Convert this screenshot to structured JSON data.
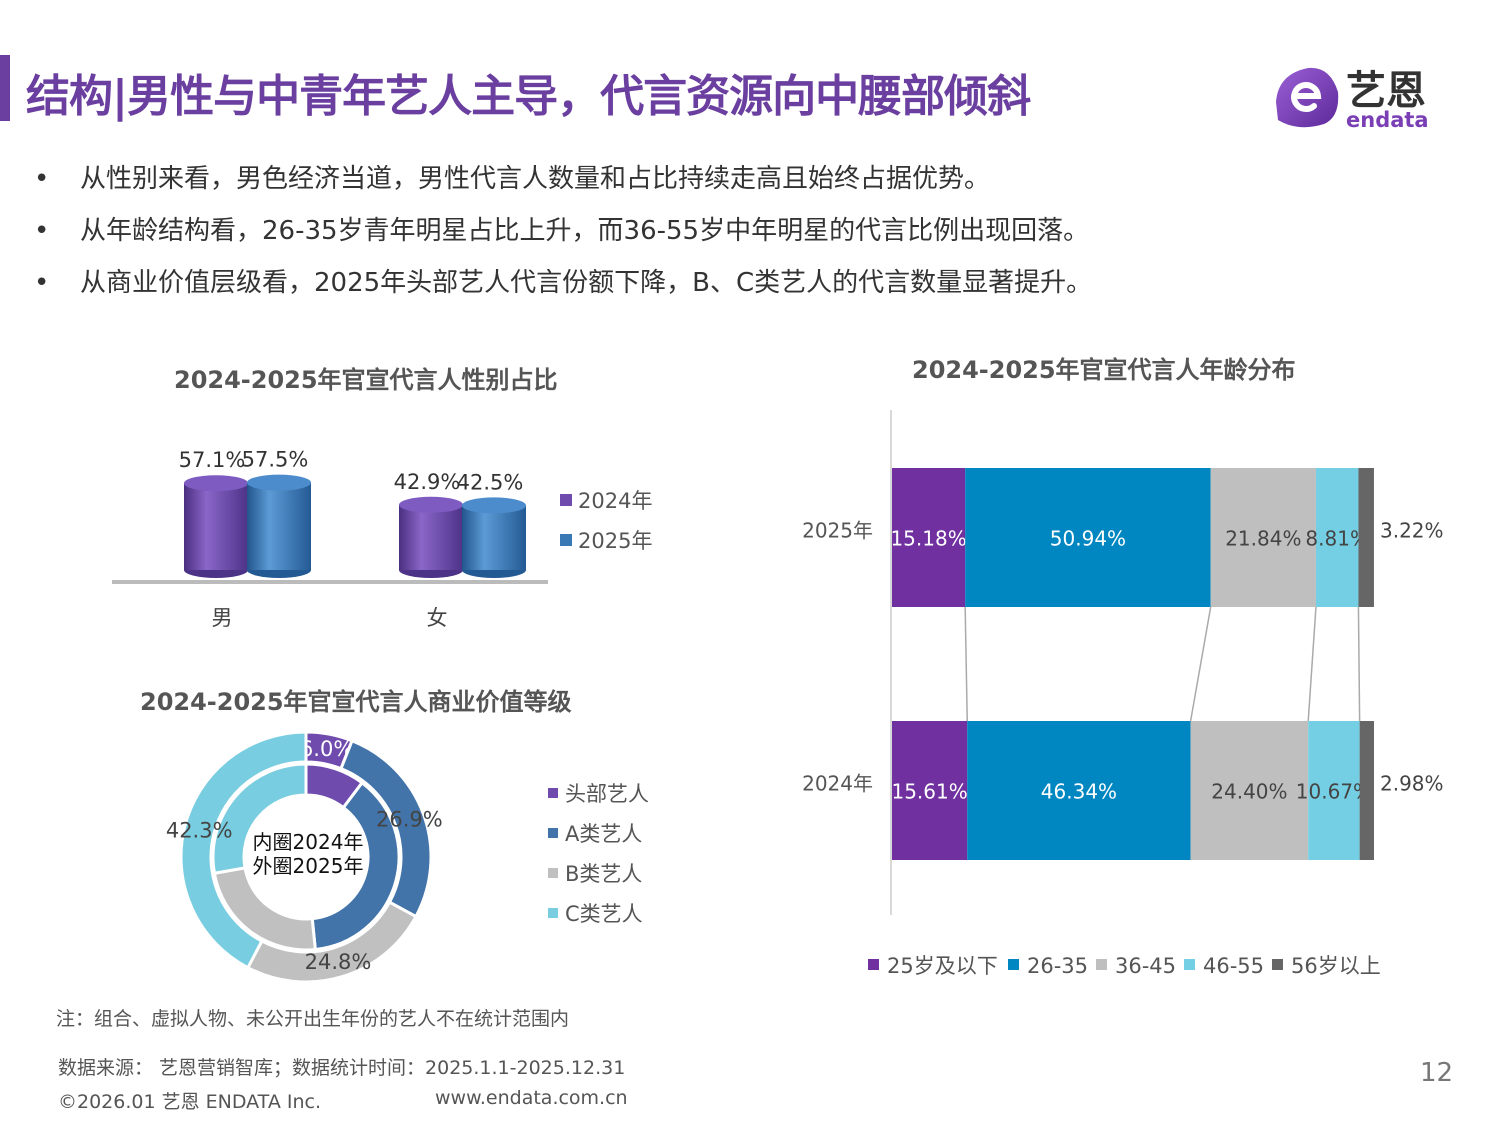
{
  "title": "结构|男性与中青年艺人主导，代言资源向中腰部倾斜",
  "logo": {
    "text_cn": "艺恩",
    "text_en": "endata",
    "color": "#7a3fb5"
  },
  "bullets": [
    "从性别来看，男色经济当道，男性代言人数量和占比持续走高且始终占据优势。",
    "从年龄结构看，26-35岁青年明星占比上升，而36-55岁中年明星的代言比例出现回落。",
    "从商业价值层级看，2025年头部艺人代言份额下降，B、C类艺人的代言数量显著提升。"
  ],
  "bullet_symbol": "•",
  "chart_data": [
    {
      "type": "bar",
      "title": "2024-2025年官宣代言人性别占比",
      "categories": [
        "男",
        "女"
      ],
      "series": [
        {
          "name": "2024年",
          "values": [
            57.1,
            42.9
          ],
          "labels": [
            "57.1%",
            "42.9%"
          ],
          "color": "#6f4bae"
        },
        {
          "name": "2025年",
          "values": [
            57.5,
            42.5
          ],
          "labels": [
            "57.5%",
            "42.5%"
          ],
          "color": "#3a78b5"
        }
      ],
      "style": "3d-cylinder",
      "legend": "right"
    },
    {
      "type": "pie",
      "title": "2024-2025年官宣代言人商业价值等级",
      "center_label": [
        "内圈2024年",
        "外圈2025年"
      ],
      "categories": [
        "头部艺人",
        "A类艺人",
        "B类艺人",
        "C类艺人"
      ],
      "colors": [
        "#6f4bae",
        "#4274aa",
        "#c0c0c0",
        "#78cde0"
      ],
      "series": [
        {
          "name": "2024年",
          "ring": "inner",
          "values": [
            10.3,
            38.1,
            23.8,
            27.8
          ]
        },
        {
          "name": "2025年",
          "ring": "outer",
          "values": [
            6.0,
            26.9,
            24.8,
            42.3
          ],
          "labels": [
            "6.0%",
            "26.9%",
            "24.8%",
            "42.3%"
          ]
        }
      ],
      "legend": "right"
    },
    {
      "type": "bar",
      "orientation": "horizontal-stacked-100",
      "title": "2024-2025年官宣代言人年龄分布",
      "categories": [
        "2025年",
        "2024年"
      ],
      "series": [
        {
          "name": "25岁及以下",
          "values": [
            15.18,
            15.61
          ],
          "labels": [
            "15.18%",
            "15.61%"
          ],
          "color": "#7030a0"
        },
        {
          "name": "26-35",
          "values": [
            50.94,
            46.34
          ],
          "labels": [
            "50.94%",
            "46.34%"
          ],
          "color": "#0086c0"
        },
        {
          "name": "36-45",
          "values": [
            21.84,
            24.4
          ],
          "labels": [
            "21.84%",
            "24.40%"
          ],
          "color": "#bfbfbf"
        },
        {
          "name": "46-55",
          "values": [
            8.81,
            10.67
          ],
          "labels": [
            "8.81%",
            "10.67%"
          ],
          "color": "#75cfe4"
        },
        {
          "name": "56岁以上",
          "values": [
            3.22,
            2.98
          ],
          "labels": [
            "3.22%",
            "2.98%"
          ],
          "color": "#666666"
        }
      ],
      "legend": "bottom"
    }
  ],
  "note": "注：组合、虚拟人物、未公开出生年份的艺人不在统计范围内",
  "source": "数据来源： 艺恩营销智库；数据统计时间：2025.1.1-2025.12.31",
  "copyright": "©2026.01 艺恩 ENDATA Inc.",
  "website": "www.endata.com.cn",
  "page_number": "12"
}
